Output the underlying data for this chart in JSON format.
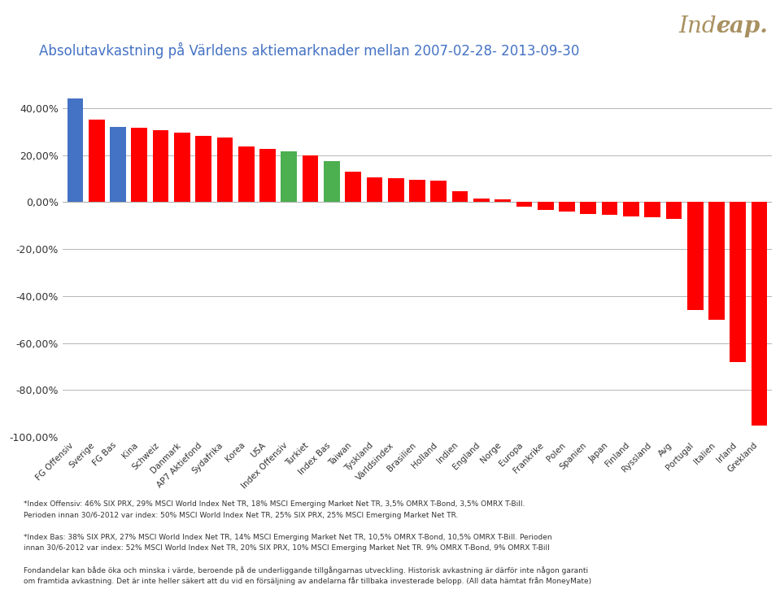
{
  "title": "Absolutavkastning på Världens aktiemarknader mellan 2007-02-28- 2013-09-30",
  "title_color": "#4472C4",
  "categories": [
    "FG Offensiv",
    "Sverige",
    "FG Bas",
    "Kina",
    "Schweiz",
    "Danmark",
    "AP7 Aktiefond",
    "Sydafrika",
    "Korea",
    "USA",
    "Index Offensiv",
    "Turkiet",
    "Index Bas",
    "Taiwan",
    "Tyskland",
    "Världsindex",
    "Brasilien",
    "Holland",
    "Indien",
    "England",
    "Norge",
    "Europa",
    "Frankrike",
    "Polen",
    "Spanien",
    "Japan",
    "Finland",
    "Ryssland",
    "Avg",
    "Portugal",
    "Italien",
    "Irland",
    "Grekland"
  ],
  "values": [
    44.0,
    35.0,
    32.0,
    31.5,
    30.5,
    29.5,
    28.0,
    27.5,
    23.5,
    22.5,
    21.5,
    20.0,
    17.5,
    13.0,
    10.5,
    10.0,
    9.5,
    9.0,
    4.5,
    1.5,
    1.0,
    -2.0,
    -3.5,
    -4.0,
    -5.0,
    -5.5,
    -6.0,
    -6.5,
    -7.0,
    -46.0,
    -50.0,
    -68.0,
    -95.0
  ],
  "colors": [
    "#4472C4",
    "#FF0000",
    "#4472C4",
    "#FF0000",
    "#FF0000",
    "#FF0000",
    "#FF0000",
    "#FF0000",
    "#FF0000",
    "#FF0000",
    "#4CAF50",
    "#FF0000",
    "#4CAF50",
    "#FF0000",
    "#FF0000",
    "#FF0000",
    "#FF0000",
    "#FF0000",
    "#FF0000",
    "#FF0000",
    "#FF0000",
    "#FF0000",
    "#FF0000",
    "#FF0000",
    "#FF0000",
    "#FF0000",
    "#FF0000",
    "#FF0000",
    "#FF0000",
    "#FF0000",
    "#FF0000",
    "#FF0000",
    "#FF0000"
  ],
  "ylim": [
    -100,
    55
  ],
  "yticks": [
    -100,
    -80,
    -60,
    -40,
    -20,
    0,
    20,
    40
  ],
  "ytick_labels": [
    "-100,00%",
    "-80,00%",
    "-60,00%",
    "-40,00%",
    "-20,00%",
    "0,00%",
    "20,00%",
    "40,00%"
  ],
  "footnote1": "*Index Offensiv: 46% SIX PRX, 29% MSCI World Index Net TR, 18% MSCI Emerging Market Net TR, 3,5% OMRX T-Bond, 3,5% OMRX T-Bill.",
  "footnote2": "Perioden innan 30/6-2012 var index: 50% MSCI World Index Net TR, 25% SIX PRX, 25% MSCI Emerging Market Net TR.",
  "footnote3": "*Index Bas: 38% SIX PRX, 27% MSCI World Index Net TR, 14% MSCI Emerging Market Net TR, 10,5% OMRX T-Bond, 10,5% OMRX T-Bill. Perioden",
  "footnote4": "innan 30/6-2012 var index: 52% MSCI World Index Net TR, 20% SIX PRX, 10% MSCI Emerging Market Net TR. 9% OMRX T-Bond, 9% OMRX T-Bill",
  "footnote5": "Fondandelar kan både öka och minska i värde, beroende på de underliggande tillgångarnas utveckling. Historisk avkastning är därför inte någon garanti",
  "footnote6": "om framtida avkastning. Det är inte heller säkert att du vid en försäljning av andelarna får tillbaka investerade belopp. (All data hämtat från MoneyMate)",
  "logo_italic": "Inde",
  "logo_bold": "cap.",
  "logo_color": "#A89060",
  "background_color": "#FFFFFF",
  "grid_color": "#AAAAAA"
}
